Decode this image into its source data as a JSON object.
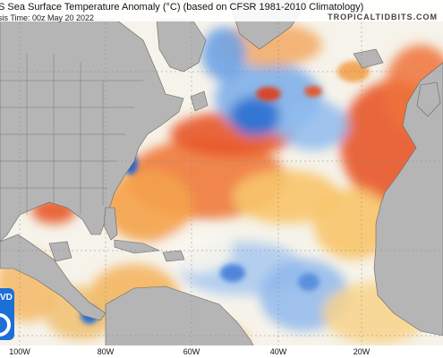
{
  "header": {
    "title": "S Sea Surface Temperature Anomaly (°C) (based on CFSR 1981-2010 Climatology)",
    "subtitle": "sis Time: 00z May 20 2022",
    "brand": "TROPICALTIDBITS.COM"
  },
  "axis": {
    "longitude_ticks": [
      "100W",
      "80W",
      "60W",
      "40W",
      "20W"
    ]
  },
  "logo": {
    "text": "VD"
  },
  "colors": {
    "land": "#b5b5b5",
    "warm": "#e8562a",
    "warm_light": "#f7c067",
    "cool": "#3d7fd9",
    "cool_light": "#b9d3f2",
    "neutral": "#f8f8f3",
    "brand_blue": "#1b6fd6"
  }
}
